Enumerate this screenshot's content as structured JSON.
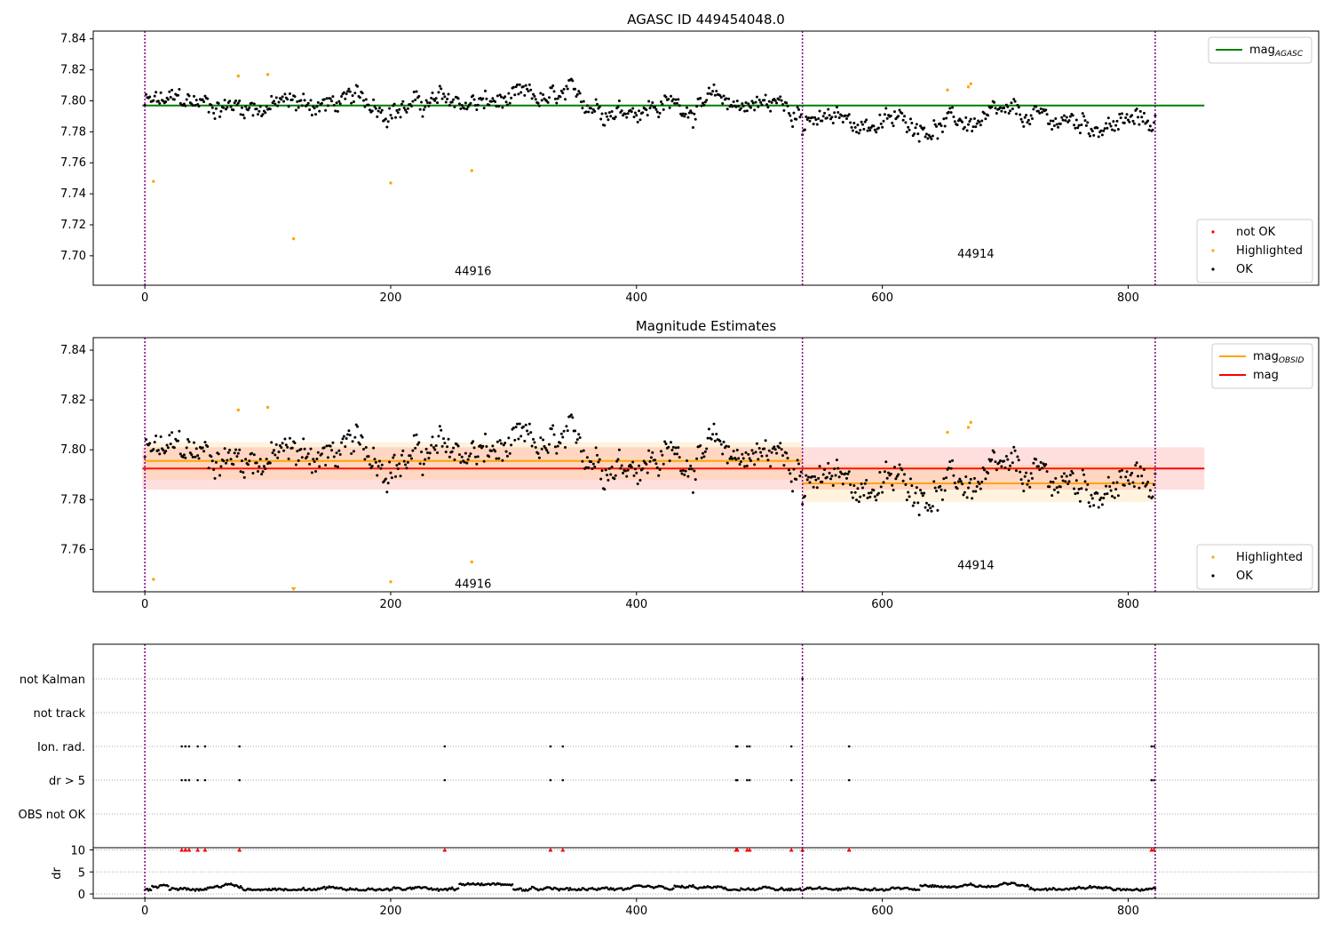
{
  "chart_data": [
    {
      "type": "scatter",
      "title": "AGASC ID 449454048.0",
      "xlim": [
        -42,
        955
      ],
      "ylim": [
        7.681,
        7.845
      ],
      "xticks": [
        0,
        200,
        400,
        600,
        800
      ],
      "yticks": [
        7.7,
        7.72,
        7.74,
        7.76,
        7.78,
        7.8,
        7.82,
        7.84
      ],
      "ytick_labels": [
        "7.70",
        "7.72",
        "7.74",
        "7.76",
        "7.78",
        "7.80",
        "7.82",
        "7.84"
      ],
      "obsid_boundaries": [
        0,
        535,
        822
      ],
      "obsid_labels": [
        {
          "text": "44916",
          "x": 267,
          "y": 7.69
        },
        {
          "text": "44914",
          "x": 676,
          "y": 7.701
        }
      ],
      "lines": [
        {
          "name": "mag_AGASC",
          "y": 7.797,
          "x0": -2,
          "x1": 862,
          "color": "#008000"
        }
      ],
      "segments": [
        {
          "x0": 0,
          "x1": 535,
          "mean": 7.798,
          "noise": 0.009
        },
        {
          "x0": 535,
          "x1": 822,
          "mean": 7.786,
          "noise": 0.008
        }
      ],
      "series": [
        {
          "name": "not OK",
          "color": "#ff0000",
          "points": []
        },
        {
          "name": "Highlighted",
          "color": "#ffa500",
          "points": [
            [
              7,
              7.748
            ],
            [
              76,
              7.816
            ],
            [
              100,
              7.817
            ],
            [
              121,
              7.711
            ],
            [
              200,
              7.747
            ],
            [
              266,
              7.755
            ],
            [
              653,
              7.807
            ],
            [
              670,
              7.809
            ],
            [
              672,
              7.811
            ]
          ]
        },
        {
          "name": "OK",
          "color": "#000000"
        }
      ],
      "legend_top": [
        {
          "label": "mag",
          "sub": "AGASC",
          "color": "#008000"
        }
      ],
      "legend_bottom": [
        {
          "label": "not OK",
          "color": "#ff0000"
        },
        {
          "label": "Highlighted",
          "color": "#ffa500"
        },
        {
          "label": "OK",
          "color": "#000000"
        }
      ],
      "legend_top_placement": "upper right",
      "legend_bottom_placement": "lower right"
    },
    {
      "type": "scatter",
      "title": "Magnitude Estimates",
      "xlim": [
        -42,
        955
      ],
      "ylim": [
        7.743,
        7.845
      ],
      "xticks": [
        0,
        200,
        400,
        600,
        800
      ],
      "yticks": [
        7.76,
        7.78,
        7.8,
        7.82,
        7.84
      ],
      "ytick_labels": [
        "7.76",
        "7.78",
        "7.80",
        "7.82",
        "7.84"
      ],
      "obsid_boundaries": [
        0,
        535,
        822
      ],
      "obsid_labels": [
        {
          "text": "44916",
          "x": 267,
          "y": 7.746
        },
        {
          "text": "44914",
          "x": 676,
          "y": 7.7535
        }
      ],
      "bands": [
        {
          "name": "mag",
          "x0": -2,
          "x1": 862,
          "center": 7.7925,
          "half": 0.0085,
          "color": "#ff0000"
        },
        {
          "name": "mag_OBSID 44916",
          "x0": 0,
          "x1": 535,
          "center": 7.7955,
          "half": 0.0075,
          "color": "#ffa500"
        },
        {
          "name": "mag_OBSID 44914",
          "x0": 535,
          "x1": 822,
          "center": 7.7865,
          "half": 0.0075,
          "color": "#ffa500"
        }
      ],
      "legend_top": [
        {
          "label": "mag",
          "sub": "OBSID",
          "color": "#ffa500"
        },
        {
          "label": "mag",
          "sub": "",
          "color": "#ff0000"
        }
      ],
      "legend_bottom": [
        {
          "label": "Highlighted",
          "color": "#ffa500"
        },
        {
          "label": "OK",
          "color": "#000000"
        }
      ],
      "legend_top_placement": "upper right",
      "legend_bottom_placement": "lower right"
    },
    {
      "type": "scatter",
      "title": "",
      "xlim": [
        -42,
        955
      ],
      "xticks": [
        0,
        200,
        400,
        600,
        800
      ],
      "flag_rows": [
        "not Kalman",
        "not track",
        "Ion. rad.",
        "dr > 5",
        "OBS not OK"
      ],
      "flag_points": {
        "not Kalman": [
          535
        ],
        "not track": [],
        "Ion. rad.": [
          30,
          33,
          36,
          43,
          49,
          77,
          244,
          330,
          340,
          481,
          482,
          490,
          492,
          526,
          573,
          819,
          821
        ],
        "dr > 5": [
          30,
          33,
          36,
          43,
          49,
          77,
          244,
          330,
          340,
          481,
          482,
          490,
          492,
          526,
          573,
          819,
          821
        ],
        "OBS not OK": []
      },
      "dr_panel": {
        "ylabel": "dr",
        "yticks": [
          0,
          5,
          10
        ],
        "ylim": [
          -1,
          10.5
        ],
        "clip_value": 10,
        "clipped_x": [
          30,
          33,
          36,
          43,
          49,
          77,
          244,
          330,
          340,
          481,
          482,
          490,
          492,
          526,
          535,
          573,
          819,
          821
        ]
      }
    }
  ]
}
